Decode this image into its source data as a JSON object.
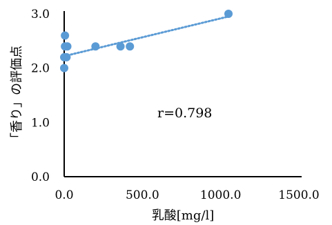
{
  "chart_data": {
    "type": "scatter",
    "title": "",
    "xlabel": "乳酸[mg/l]",
    "ylabel": "「香り」の評価点",
    "xlim": [
      0,
      1500
    ],
    "ylim": [
      0,
      3
    ],
    "x_ticks": [
      "0.0",
      "500.0",
      "1000.0",
      "1500.0"
    ],
    "y_ticks": [
      "0.0",
      "1.0",
      "2.0",
      "3.0"
    ],
    "grid": false,
    "legend": "none",
    "series": [
      {
        "points": [
          {
            "x": 0,
            "y": 2.0
          },
          {
            "x": 0,
            "y": 2.2
          },
          {
            "x": 5,
            "y": 2.4
          },
          {
            "x": 5,
            "y": 2.6
          },
          {
            "x": 15,
            "y": 2.2
          },
          {
            "x": 20,
            "y": 2.4
          },
          {
            "x": 200,
            "y": 2.4
          },
          {
            "x": 360,
            "y": 2.4
          },
          {
            "x": 420,
            "y": 2.4
          },
          {
            "x": 1050,
            "y": 3.0
          }
        ],
        "color": "#5b9bd5"
      }
    ],
    "trendline": {
      "style": "dotted",
      "x": [
        0,
        1050
      ],
      "y": [
        2.22,
        2.95
      ],
      "color": "#5b9bd5"
    },
    "annotation": "r=0.798"
  }
}
